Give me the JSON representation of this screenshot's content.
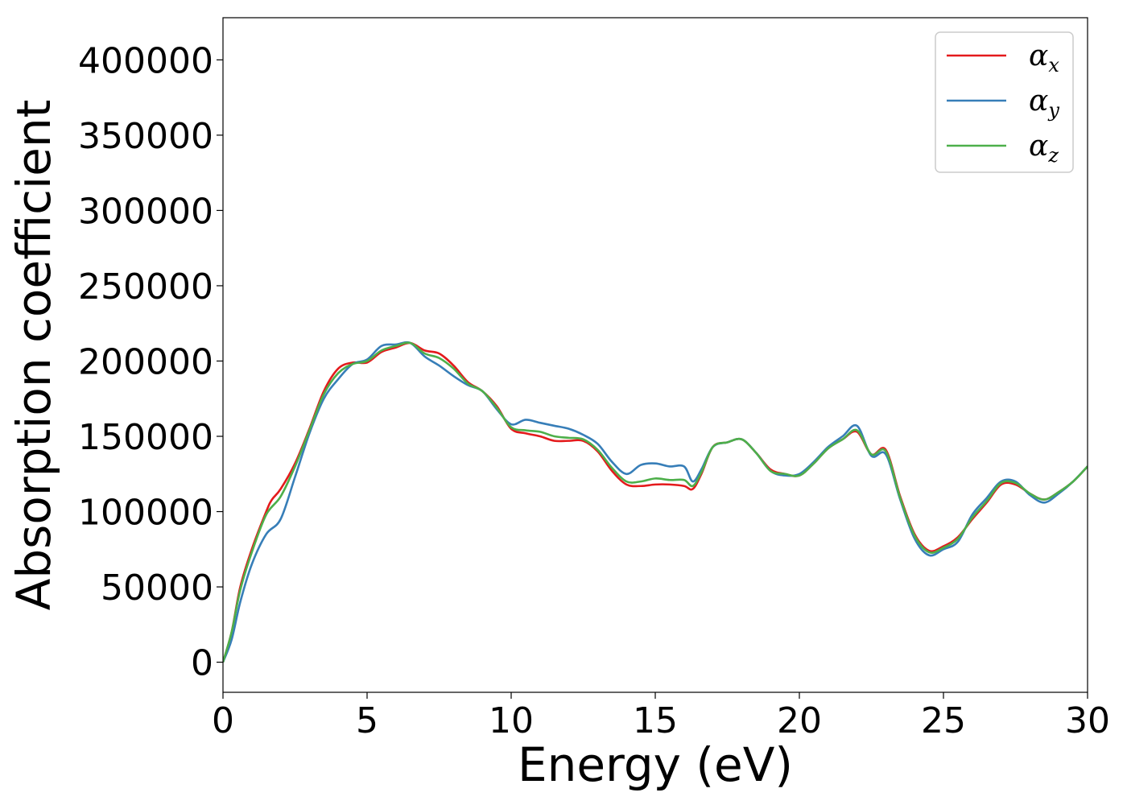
{
  "chart_data": {
    "type": "line",
    "title": "",
    "xlabel": "Energy (eV)",
    "ylabel": "Absorption coefficient",
    "xlim": [
      0,
      30
    ],
    "ylim": [
      -20000,
      428000
    ],
    "x_ticks": [
      0,
      5,
      10,
      15,
      20,
      25,
      30
    ],
    "y_ticks": [
      0,
      50000,
      100000,
      150000,
      200000,
      250000,
      300000,
      350000,
      400000
    ],
    "grid": false,
    "legend_position": "top-right",
    "series": [
      {
        "name": "α",
        "subscript": "x",
        "color": "#e41a1c",
        "points": [
          [
            0,
            0
          ],
          [
            0.3,
            20000
          ],
          [
            0.6,
            50000
          ],
          [
            1.0,
            75000
          ],
          [
            1.5,
            100000
          ],
          [
            1.7,
            108000
          ],
          [
            2.0,
            115000
          ],
          [
            2.5,
            132000
          ],
          [
            3.0,
            155000
          ],
          [
            3.5,
            180000
          ],
          [
            4.0,
            195000
          ],
          [
            4.5,
            199000
          ],
          [
            5.0,
            199000
          ],
          [
            5.5,
            206000
          ],
          [
            6.0,
            209000
          ],
          [
            6.5,
            212000
          ],
          [
            7.0,
            207000
          ],
          [
            7.5,
            205000
          ],
          [
            8.0,
            197000
          ],
          [
            8.5,
            186000
          ],
          [
            9.0,
            180000
          ],
          [
            9.5,
            170000
          ],
          [
            10.0,
            155000
          ],
          [
            10.5,
            152000
          ],
          [
            11.0,
            150000
          ],
          [
            11.5,
            147000
          ],
          [
            12.0,
            147000
          ],
          [
            12.5,
            147000
          ],
          [
            13.0,
            140000
          ],
          [
            13.5,
            127000
          ],
          [
            14.0,
            118000
          ],
          [
            14.5,
            117000
          ],
          [
            15.0,
            118000
          ],
          [
            15.5,
            118000
          ],
          [
            16.0,
            117000
          ],
          [
            16.3,
            115000
          ],
          [
            16.6,
            125000
          ],
          [
            17.0,
            143000
          ],
          [
            17.5,
            146000
          ],
          [
            18.0,
            148000
          ],
          [
            18.5,
            139000
          ],
          [
            19.0,
            128000
          ],
          [
            19.5,
            125000
          ],
          [
            20.0,
            124000
          ],
          [
            20.5,
            132000
          ],
          [
            21.0,
            142000
          ],
          [
            21.5,
            148000
          ],
          [
            22.0,
            153000
          ],
          [
            22.5,
            138000
          ],
          [
            23.0,
            141000
          ],
          [
            23.5,
            110000
          ],
          [
            24.0,
            85000
          ],
          [
            24.5,
            74000
          ],
          [
            25.0,
            77000
          ],
          [
            25.5,
            83000
          ],
          [
            26.0,
            95000
          ],
          [
            26.5,
            106000
          ],
          [
            27.0,
            118000
          ],
          [
            27.5,
            118000
          ],
          [
            28.0,
            112000
          ],
          [
            28.5,
            108000
          ],
          [
            29.0,
            113000
          ],
          [
            29.5,
            120000
          ],
          [
            30.0,
            130000
          ]
        ]
      },
      {
        "name": "α",
        "subscript": "y",
        "color": "#377eb8",
        "points": [
          [
            0,
            0
          ],
          [
            0.3,
            15000
          ],
          [
            0.6,
            40000
          ],
          [
            1.0,
            65000
          ],
          [
            1.5,
            85000
          ],
          [
            2.0,
            95000
          ],
          [
            2.5,
            123000
          ],
          [
            3.0,
            152000
          ],
          [
            3.5,
            175000
          ],
          [
            4.0,
            188000
          ],
          [
            4.5,
            198000
          ],
          [
            5.0,
            201000
          ],
          [
            5.5,
            210000
          ],
          [
            6.0,
            211000
          ],
          [
            6.5,
            212000
          ],
          [
            7.0,
            203000
          ],
          [
            7.5,
            197000
          ],
          [
            8.0,
            190000
          ],
          [
            8.5,
            184000
          ],
          [
            9.0,
            180000
          ],
          [
            9.5,
            168000
          ],
          [
            10.0,
            158000
          ],
          [
            10.5,
            161000
          ],
          [
            11.0,
            159000
          ],
          [
            11.5,
            157000
          ],
          [
            12.0,
            155000
          ],
          [
            12.5,
            151000
          ],
          [
            13.0,
            145000
          ],
          [
            13.5,
            133000
          ],
          [
            14.0,
            125000
          ],
          [
            14.5,
            131000
          ],
          [
            15.0,
            132000
          ],
          [
            15.5,
            130000
          ],
          [
            16.0,
            130000
          ],
          [
            16.3,
            120000
          ],
          [
            16.6,
            128000
          ],
          [
            17.0,
            143000
          ],
          [
            17.5,
            146000
          ],
          [
            18.0,
            148000
          ],
          [
            18.5,
            139000
          ],
          [
            19.0,
            127000
          ],
          [
            19.5,
            124000
          ],
          [
            20.0,
            125000
          ],
          [
            20.5,
            133000
          ],
          [
            21.0,
            143000
          ],
          [
            21.5,
            150000
          ],
          [
            22.0,
            157000
          ],
          [
            22.5,
            137000
          ],
          [
            23.0,
            138000
          ],
          [
            23.5,
            108000
          ],
          [
            24.0,
            82000
          ],
          [
            24.5,
            71000
          ],
          [
            25.0,
            75000
          ],
          [
            25.5,
            80000
          ],
          [
            26.0,
            98000
          ],
          [
            26.5,
            109000
          ],
          [
            27.0,
            120000
          ],
          [
            27.5,
            120000
          ],
          [
            28.0,
            111000
          ],
          [
            28.5,
            106000
          ],
          [
            29.0,
            112000
          ],
          [
            29.5,
            120000
          ],
          [
            30.0,
            130000
          ]
        ]
      },
      {
        "name": "α",
        "subscript": "z",
        "color": "#4daf4a",
        "points": [
          [
            0,
            0
          ],
          [
            0.3,
            20000
          ],
          [
            0.6,
            48000
          ],
          [
            1.0,
            73000
          ],
          [
            1.5,
            98000
          ],
          [
            2.0,
            110000
          ],
          [
            2.5,
            130000
          ],
          [
            3.0,
            154000
          ],
          [
            3.5,
            178000
          ],
          [
            4.0,
            192000
          ],
          [
            4.5,
            198000
          ],
          [
            5.0,
            200000
          ],
          [
            5.5,
            207000
          ],
          [
            6.0,
            210000
          ],
          [
            6.5,
            212000
          ],
          [
            7.0,
            205000
          ],
          [
            7.5,
            202000
          ],
          [
            8.0,
            195000
          ],
          [
            8.5,
            185000
          ],
          [
            9.0,
            180000
          ],
          [
            9.5,
            169000
          ],
          [
            10.0,
            156000
          ],
          [
            10.5,
            154000
          ],
          [
            11.0,
            153000
          ],
          [
            11.5,
            150000
          ],
          [
            12.0,
            149000
          ],
          [
            12.5,
            148000
          ],
          [
            13.0,
            141000
          ],
          [
            13.5,
            129000
          ],
          [
            14.0,
            120000
          ],
          [
            14.5,
            120000
          ],
          [
            15.0,
            122000
          ],
          [
            15.5,
            121000
          ],
          [
            16.0,
            121000
          ],
          [
            16.3,
            117000
          ],
          [
            16.6,
            126000
          ],
          [
            17.0,
            143000
          ],
          [
            17.5,
            146000
          ],
          [
            18.0,
            148000
          ],
          [
            18.5,
            139000
          ],
          [
            19.0,
            127000
          ],
          [
            19.5,
            125000
          ],
          [
            20.0,
            124000
          ],
          [
            20.5,
            132000
          ],
          [
            21.0,
            142000
          ],
          [
            21.5,
            148000
          ],
          [
            22.0,
            154000
          ],
          [
            22.5,
            138000
          ],
          [
            23.0,
            140000
          ],
          [
            23.5,
            109000
          ],
          [
            24.0,
            84000
          ],
          [
            24.5,
            73000
          ],
          [
            25.0,
            76000
          ],
          [
            25.5,
            82000
          ],
          [
            26.0,
            96000
          ],
          [
            26.5,
            107000
          ],
          [
            27.0,
            119000
          ],
          [
            27.5,
            119000
          ],
          [
            28.0,
            112000
          ],
          [
            28.5,
            108000
          ],
          [
            29.0,
            113000
          ],
          [
            29.5,
            120000
          ],
          [
            30.0,
            130000
          ]
        ]
      }
    ]
  }
}
